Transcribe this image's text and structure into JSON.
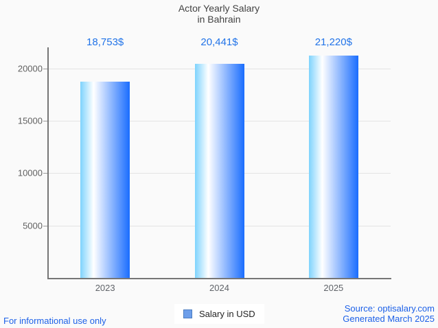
{
  "chart_data": {
    "type": "bar",
    "title": "Actor Yearly Salary",
    "subtitle": "in Bahrain",
    "categories": [
      "2023",
      "2024",
      "2025"
    ],
    "series": [
      {
        "name": "Salary in USD",
        "values": [
          18753,
          20441,
          21220
        ]
      }
    ],
    "value_labels": [
      "18,753$",
      "20,441$",
      "21,220$"
    ],
    "yticks": [
      5000,
      10000,
      15000,
      20000
    ],
    "ytick_labels": [
      "5000",
      "10000",
      "15000",
      "20000"
    ],
    "ylim": [
      0,
      22000
    ],
    "grid": "horizontal",
    "legend_position": "bottom-center",
    "bar_gradient": [
      "#7ed3fd",
      "#ffffff",
      "#1a6dfe"
    ]
  },
  "legend": {
    "label": "Salary in USD",
    "marker_fill": "#6d9eea",
    "marker_border": "#4b7cc0"
  },
  "footer": {
    "left_note": "For informational use only",
    "source": "Source: optisalary.com",
    "generated": "Generated March 2025"
  },
  "colors": {
    "background": "#fafafa",
    "title_text": "#424242",
    "axis_line": "#757575",
    "grid_line": "#e3e3e3",
    "tick_text": "#616161",
    "value_text": "#2173e8",
    "footer_text": "#1c60e8"
  }
}
